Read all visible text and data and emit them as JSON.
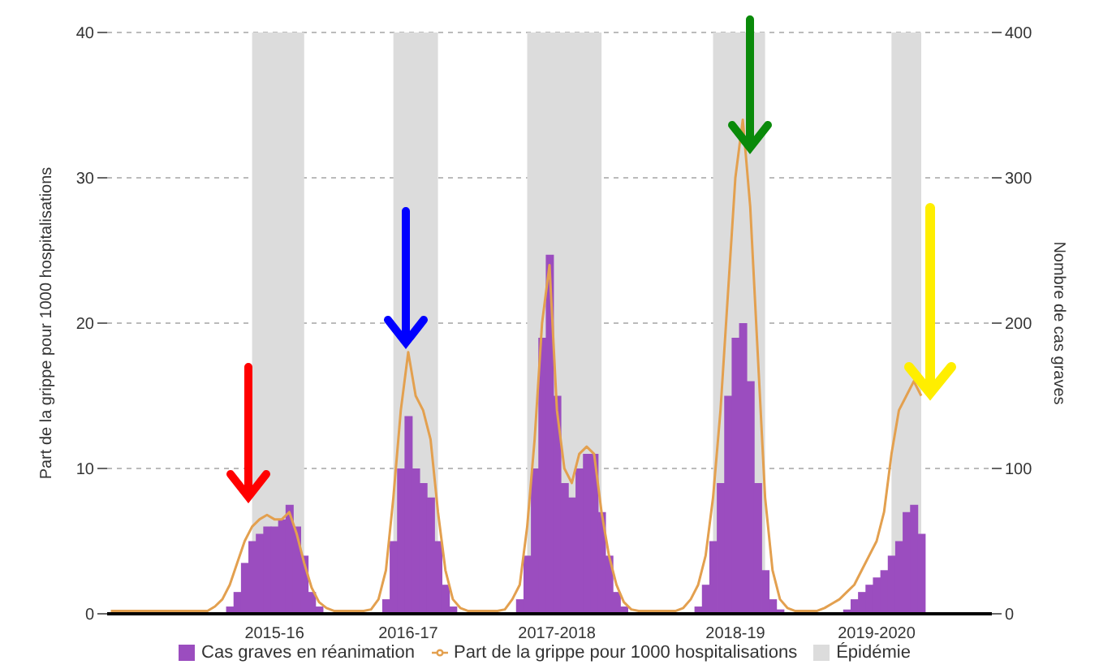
{
  "chart_data": {
    "type": "bar",
    "categories": [
      null,
      null,
      null,
      null,
      null,
      null,
      null,
      null,
      null,
      null,
      null,
      null,
      null,
      null,
      null,
      null,
      null,
      null,
      null,
      null,
      null,
      null,
      "2015-16",
      null,
      null,
      null,
      null,
      null,
      null,
      null,
      null,
      null,
      null,
      null,
      null,
      null,
      null,
      null,
      null,
      null,
      "2016-17",
      null,
      null,
      null,
      null,
      null,
      null,
      null,
      null,
      null,
      null,
      null,
      null,
      null,
      null,
      null,
      null,
      null,
      null,
      null,
      "2017-2018",
      null,
      null,
      null,
      null,
      null,
      null,
      null,
      null,
      null,
      null,
      null,
      null,
      null,
      null,
      null,
      null,
      null,
      null,
      null,
      null,
      null,
      null,
      null,
      "2018-19",
      null,
      null,
      null,
      null,
      null,
      null,
      null,
      null,
      null,
      null,
      null,
      null,
      null,
      null,
      null,
      null,
      null,
      null,
      "2019-2020",
      null,
      null,
      null,
      null,
      null,
      null,
      null,
      null,
      null,
      null,
      null,
      null,
      null,
      null,
      null
    ],
    "series": [
      {
        "name": "Épidémie",
        "type": "area",
        "color": "#dcdcdc",
        "values": [
          null,
          null,
          null,
          null,
          null,
          null,
          null,
          null,
          null,
          null,
          null,
          null,
          null,
          null,
          null,
          null,
          null,
          null,
          null,
          40,
          40,
          40,
          40,
          40,
          40,
          40,
          40,
          null,
          null,
          null,
          null,
          null,
          null,
          null,
          null,
          null,
          null,
          null,
          40,
          40,
          40,
          40,
          40,
          40,
          40,
          null,
          null,
          null,
          null,
          null,
          null,
          null,
          null,
          null,
          null,
          null,
          40,
          40,
          40,
          40,
          40,
          40,
          40,
          40,
          40,
          40,
          40,
          null,
          null,
          null,
          null,
          null,
          null,
          null,
          null,
          null,
          null,
          null,
          null,
          null,
          null,
          40,
          40,
          40,
          40,
          40,
          40,
          40,
          40,
          null,
          null,
          null,
          null,
          null,
          null,
          null,
          null,
          null,
          null,
          null,
          null,
          null,
          null,
          null,
          null,
          40,
          40,
          40,
          40,
          40,
          null,
          null,
          null,
          null,
          null,
          null,
          null,
          null,
          null
        ]
      },
      {
        "name": "Cas graves en réanimation",
        "axis": "y2",
        "color": "#9b4dbf",
        "values": [
          0,
          0,
          0,
          0,
          0,
          0,
          0,
          0,
          0,
          0,
          0,
          0,
          0,
          0,
          0,
          0,
          5,
          15,
          35,
          50,
          55,
          60,
          60,
          65,
          75,
          60,
          40,
          15,
          5,
          0,
          0,
          0,
          0,
          0,
          0,
          0,
          0,
          10,
          50,
          100,
          136,
          100,
          90,
          80,
          50,
          20,
          5,
          0,
          0,
          0,
          0,
          0,
          0,
          0,
          0,
          10,
          40,
          100,
          190,
          247,
          150,
          90,
          80,
          100,
          110,
          110,
          70,
          40,
          15,
          5,
          0,
          0,
          0,
          0,
          0,
          0,
          0,
          0,
          0,
          5,
          20,
          50,
          90,
          150,
          190,
          200,
          160,
          90,
          30,
          10,
          3,
          0,
          0,
          0,
          0,
          0,
          0,
          0,
          0,
          3,
          10,
          15,
          20,
          25,
          30,
          40,
          50,
          70,
          75,
          55,
          null,
          null,
          null,
          null,
          null,
          null,
          null,
          null,
          null
        ]
      },
      {
        "name": "Part de la grippe pour 1000 hospitalisations",
        "type": "line",
        "color": "#e3a04f",
        "values": [
          0.2,
          0.2,
          0.2,
          0.2,
          0.2,
          0.2,
          0.2,
          0.2,
          0.2,
          0.2,
          0.2,
          0.2,
          0.2,
          0.2,
          0.5,
          1,
          2,
          3.5,
          5,
          6,
          6.5,
          6.8,
          6.5,
          6.5,
          7,
          5.5,
          3.5,
          1.8,
          0.8,
          0.4,
          0.2,
          0.2,
          0.2,
          0.2,
          0.2,
          0.3,
          1,
          3,
          8,
          14,
          18,
          15,
          14,
          12,
          7,
          3,
          1,
          0.4,
          0.2,
          0.2,
          0.2,
          0.2,
          0.2,
          0.3,
          1,
          2,
          6,
          12,
          20,
          24,
          14,
          10,
          9,
          11,
          11.5,
          11,
          7,
          4,
          2,
          0.8,
          0.3,
          0.2,
          0.2,
          0.2,
          0.2,
          0.2,
          0.2,
          0.4,
          1,
          2,
          4,
          8,
          14,
          22,
          30,
          34,
          28,
          18,
          8,
          3,
          1,
          0.4,
          0.2,
          0.2,
          0.2,
          0.2,
          0.4,
          0.7,
          1,
          1.5,
          2,
          3,
          4,
          5,
          7,
          11,
          14,
          15,
          16,
          15,
          null,
          null,
          null,
          null,
          null,
          null,
          null,
          null,
          null
        ]
      }
    ],
    "ylabel": "Part de la grippe pour 1000 hospitalisations",
    "y2label": "Nombre de cas graves",
    "ylim": [
      0,
      40
    ],
    "yticks": [
      0,
      10,
      20,
      30,
      40
    ],
    "y2lim": [
      0,
      400
    ],
    "y2ticks": [
      0,
      100,
      200,
      300,
      400
    ],
    "grid": "y",
    "legend": "bottom",
    "marker": "none"
  }
}
